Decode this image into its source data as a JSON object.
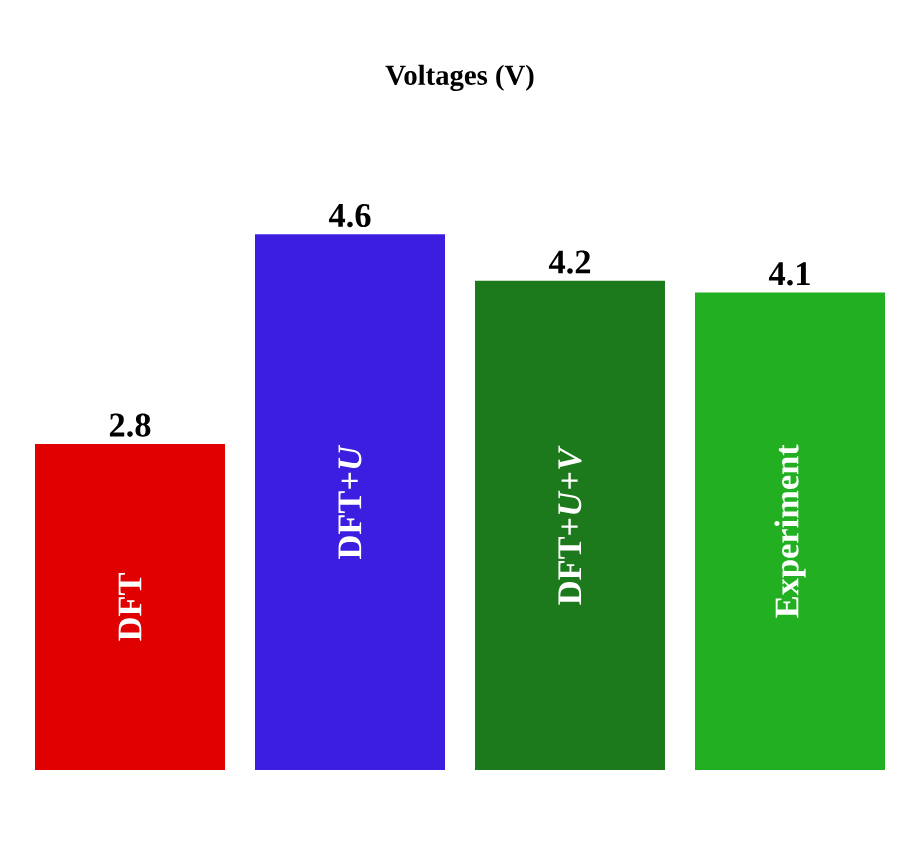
{
  "chart_data": {
    "type": "bar",
    "title": "Voltages (V)",
    "categories": [
      "DFT",
      "DFT+*U*",
      "DFT+*U*+*V*",
      "Experiment"
    ],
    "values": [
      2.8,
      4.6,
      4.2,
      4.1
    ],
    "colors": [
      "#e00000",
      "#3c1ee0",
      "#1c7a1c",
      "#22b022"
    ],
    "data_labels": true
  }
}
